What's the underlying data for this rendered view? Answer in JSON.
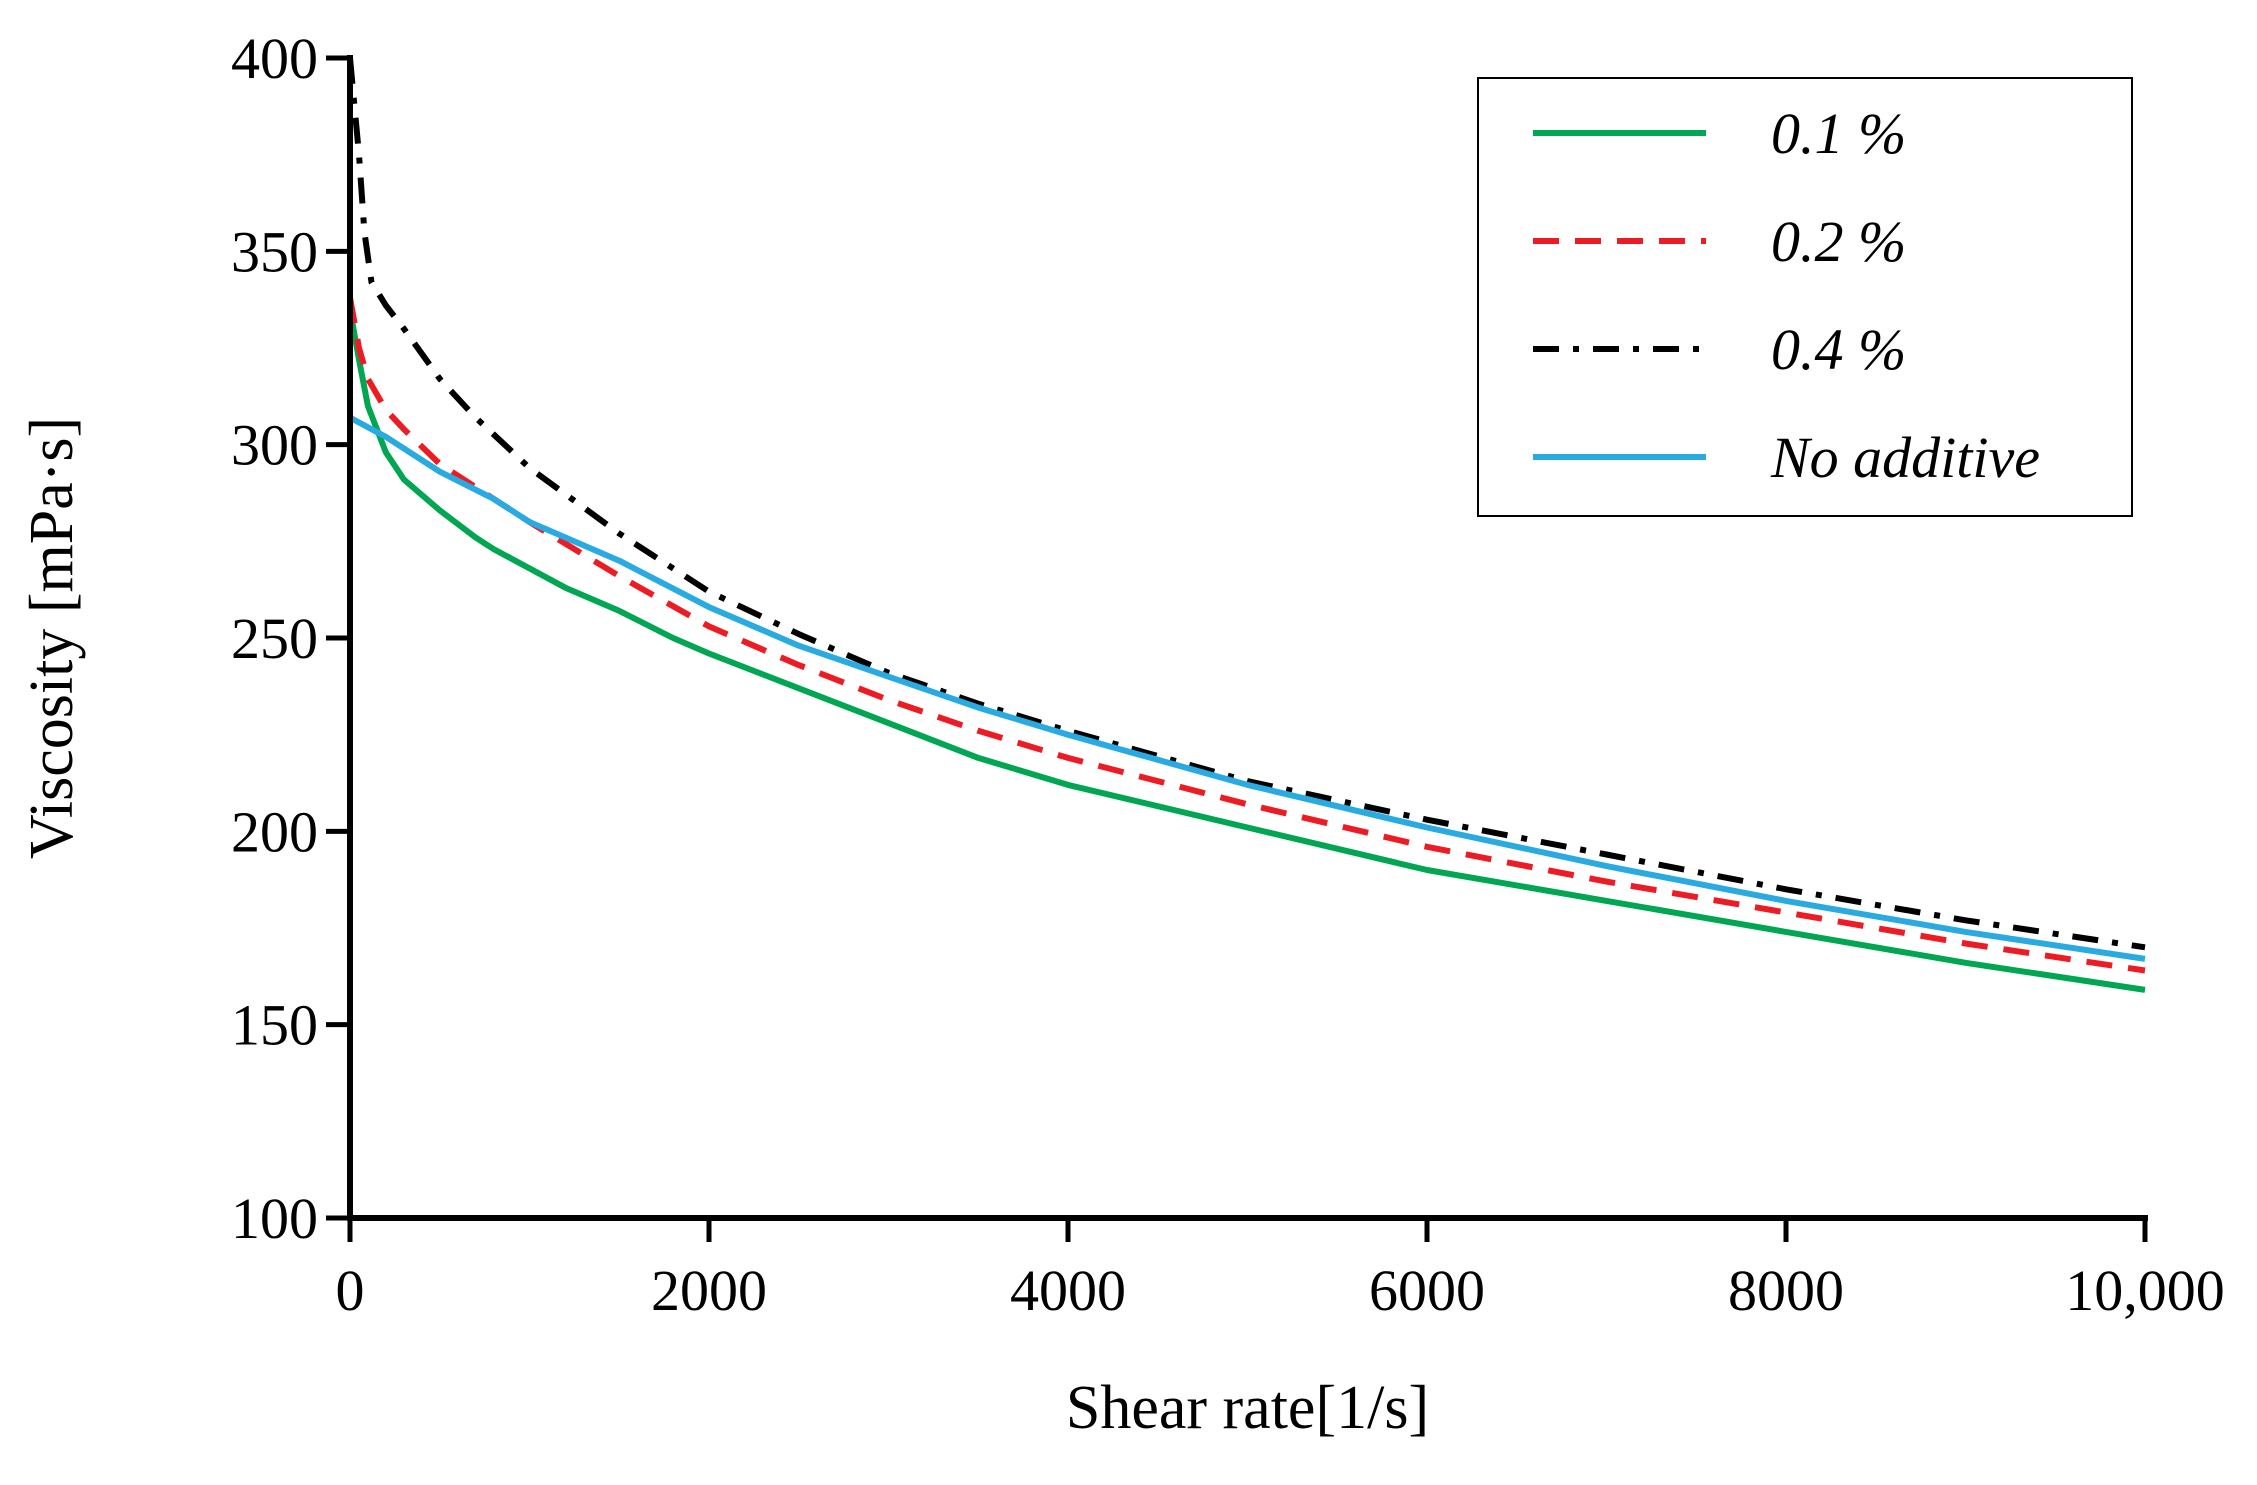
{
  "chart_data": {
    "type": "line",
    "title": "",
    "xlabel": "Shear rate[1/s]",
    "ylabel": "Viscosity [mPa·s]",
    "xlim": [
      0,
      10000
    ],
    "ylim": [
      100,
      400
    ],
    "x_ticks": [
      0,
      2000,
      4000,
      6000,
      8000,
      10000
    ],
    "x_tick_labels": [
      "0",
      "2000",
      "4000",
      "6000",
      "8000",
      "10,000"
    ],
    "y_ticks": [
      100,
      150,
      200,
      250,
      300,
      350,
      400
    ],
    "y_tick_labels": [
      "100",
      "150",
      "200",
      "250",
      "300",
      "350",
      "400"
    ],
    "grid": false,
    "legend_position": "top-right",
    "series": [
      {
        "name": "0.1 %",
        "color": "#00a651",
        "dash": "solid",
        "x": [
          0,
          50,
          100,
          200,
          300,
          500,
          700,
          800,
          1000,
          1200,
          1500,
          1800,
          2000,
          2500,
          3000,
          3500,
          4000,
          5000,
          6000,
          7000,
          8000,
          9000,
          10000
        ],
        "y": [
          335,
          322,
          310,
          298,
          291,
          283,
          276,
          273,
          268,
          263,
          257,
          250,
          246,
          237,
          228,
          219,
          212,
          201,
          190,
          182,
          174,
          166,
          159
        ]
      },
      {
        "name": "0.2 %",
        "color": "#ed1c24",
        "dash": "dashed",
        "x": [
          0,
          50,
          100,
          200,
          300,
          500,
          700,
          1000,
          1500,
          2000,
          2500,
          3000,
          3500,
          4000,
          5000,
          6000,
          7000,
          8000,
          9000,
          10000
        ],
        "y": [
          338,
          325,
          317,
          309,
          304,
          295,
          289,
          280,
          266,
          253,
          243,
          234,
          226,
          219,
          207,
          196,
          187,
          179,
          171,
          164
        ]
      },
      {
        "name": "0.4 %",
        "color": "#000000",
        "dash": "dash-dot",
        "x": [
          0,
          20,
          50,
          80,
          120,
          200,
          300,
          500,
          700,
          1000,
          1500,
          2000,
          2500,
          3000,
          3500,
          4000,
          5000,
          6000,
          7000,
          8000,
          9000,
          10000
        ],
        "y": [
          400,
          390,
          375,
          355,
          342,
          336,
          330,
          317,
          307,
          294,
          277,
          262,
          251,
          241,
          233,
          226,
          213,
          203,
          194,
          185,
          177,
          170
        ]
      },
      {
        "name": "No additive",
        "color": "#29abe2",
        "dash": "solid",
        "x": [
          0,
          200,
          500,
          800,
          1000,
          1500,
          2000,
          2500,
          3000,
          3500,
          4000,
          5000,
          6000,
          7000,
          8000,
          9000,
          10000
        ],
        "y": [
          307,
          302,
          293,
          286,
          280,
          270,
          258,
          248,
          240,
          232,
          225,
          212,
          201,
          191,
          182,
          174,
          167
        ]
      }
    ]
  }
}
